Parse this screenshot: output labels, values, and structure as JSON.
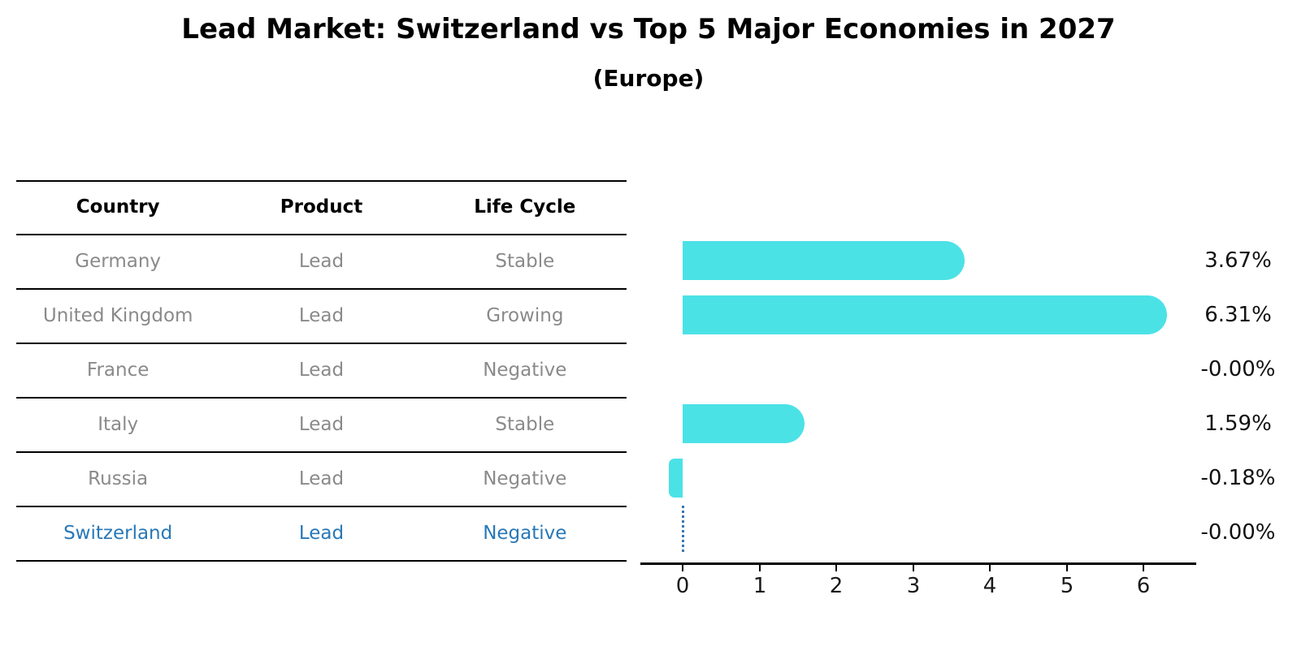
{
  "title": "Lead Market: Switzerland vs Top 5 Major Economies in 2027",
  "subtitle": "(Europe)",
  "table": {
    "headers": [
      "Country",
      "Product",
      "Life Cycle"
    ],
    "rows": [
      {
        "country": "Germany",
        "product": "Lead",
        "life_cycle": "Stable",
        "highlighted": false
      },
      {
        "country": "United Kingdom",
        "product": "Lead",
        "life_cycle": "Growing",
        "highlighted": false
      },
      {
        "country": "France",
        "product": "Lead",
        "life_cycle": "Negative",
        "highlighted": false
      },
      {
        "country": "Italy",
        "product": "Lead",
        "life_cycle": "Stable",
        "highlighted": false
      },
      {
        "country": "Russia",
        "product": "Lead",
        "life_cycle": "Negative",
        "highlighted": false
      },
      {
        "country": "Switzerland",
        "product": "Lead",
        "life_cycle": "Negative",
        "highlighted": true
      }
    ]
  },
  "chart_data": {
    "type": "bar",
    "orientation": "horizontal",
    "title": "Lead Market: Switzerland vs Top 5 Major Economies in 2027",
    "subtitle": "(Europe)",
    "categories": [
      "Germany",
      "United Kingdom",
      "France",
      "Italy",
      "Russia",
      "Switzerland"
    ],
    "values": [
      3.67,
      6.31,
      -0.0,
      1.59,
      -0.18,
      -0.0
    ],
    "value_labels": [
      "3.67%",
      "6.31%",
      "-0.00%",
      "1.59%",
      "-0.18%",
      "-0.00%"
    ],
    "unit": "percent",
    "xticks": [
      "0",
      "1",
      "2",
      "3",
      "4",
      "5",
      "6"
    ],
    "xlim": [
      -0.55,
      6.69
    ],
    "grid": false,
    "legend": false,
    "highlight_category": "Switzerland",
    "highlight_marker": "dotted-line-at-zero",
    "bar_color": "#4be2e6",
    "highlight_text_color": "#2878b8",
    "reference_line_color": "#3a76ad"
  },
  "colors": {
    "bar": "#4be2e6",
    "highlight_text": "#2878b8",
    "body_text": "#8a8a8a",
    "header_text": "#000000",
    "axis": "#000000"
  }
}
